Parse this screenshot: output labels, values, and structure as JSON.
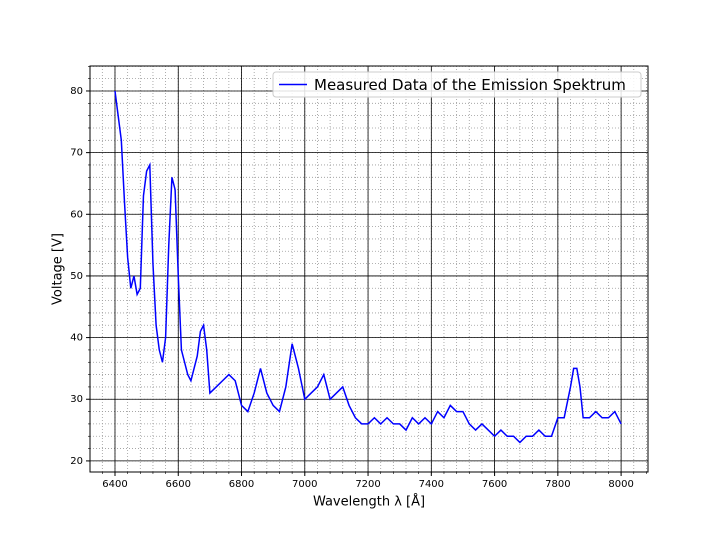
{
  "chart_data": {
    "type": "line",
    "xlabel": "Wavelength λ [Å]",
    "ylabel": "Voltage [V]",
    "x": [
      6400,
      6410,
      6420,
      6430,
      6440,
      6450,
      6460,
      6470,
      6480,
      6490,
      6500,
      6510,
      6520,
      6530,
      6540,
      6550,
      6560,
      6570,
      6580,
      6590,
      6600,
      6610,
      6620,
      6630,
      6640,
      6650,
      6660,
      6670,
      6680,
      6690,
      6700,
      6720,
      6740,
      6760,
      6780,
      6800,
      6820,
      6840,
      6860,
      6880,
      6900,
      6920,
      6940,
      6960,
      6980,
      7000,
      7020,
      7040,
      7060,
      7080,
      7100,
      7120,
      7140,
      7160,
      7180,
      7200,
      7220,
      7240,
      7260,
      7280,
      7300,
      7320,
      7340,
      7360,
      7380,
      7400,
      7420,
      7440,
      7460,
      7480,
      7500,
      7520,
      7540,
      7560,
      7580,
      7600,
      7620,
      7640,
      7660,
      7680,
      7700,
      7720,
      7740,
      7760,
      7780,
      7800,
      7820,
      7840,
      7850,
      7860,
      7870,
      7880,
      7900,
      7920,
      7940,
      7960,
      7980,
      8000
    ],
    "series": [
      {
        "name": "Measured Data of the Emission Spektrum",
        "color": "#0000ff",
        "values": [
          80,
          76,
          72,
          62,
          53,
          48,
          50,
          47,
          48,
          63,
          67,
          68,
          52,
          42,
          38,
          36,
          40,
          55,
          66,
          64,
          50,
          38,
          36,
          34,
          33,
          35,
          37,
          41,
          42,
          38,
          31,
          32,
          33,
          34,
          33,
          29,
          28,
          31,
          35,
          31,
          29,
          28,
          32,
          39,
          35,
          30,
          31,
          32,
          34,
          30,
          31,
          32,
          29,
          27,
          26,
          26,
          27,
          26,
          27,
          26,
          26,
          25,
          27,
          26,
          27,
          26,
          28,
          27,
          29,
          28,
          28,
          26,
          25,
          26,
          25,
          24,
          25,
          24,
          24,
          23,
          24,
          24,
          25,
          24,
          24,
          27,
          27,
          32,
          35,
          35,
          32,
          27,
          27,
          28,
          27,
          27,
          28,
          26
        ]
      }
    ],
    "xlim": [
      6321,
      8085
    ],
    "ylim": [
      18.2,
      84.05
    ],
    "xticks": [
      6400,
      6600,
      6800,
      7000,
      7200,
      7400,
      7600,
      7800,
      8000
    ],
    "yticks": [
      20,
      30,
      40,
      50,
      60,
      70,
      80
    ],
    "xminor": [
      6360,
      6400,
      6440,
      6480,
      6520,
      6560,
      6600,
      6640,
      6680,
      6720,
      6760,
      6800,
      6840,
      6880,
      6920,
      6960,
      7000,
      7040,
      7080,
      7120,
      7160,
      7200,
      7240,
      7280,
      7320,
      7360,
      7400,
      7440,
      7480,
      7520,
      7560,
      7600,
      7640,
      7680,
      7720,
      7760,
      7800,
      7840,
      7880,
      7920,
      7960,
      8000,
      8040,
      8080
    ],
    "yminor": [
      20,
      22,
      24,
      26,
      28,
      30,
      32,
      34,
      36,
      38,
      40,
      42,
      44,
      46,
      48,
      50,
      52,
      54,
      56,
      58,
      60,
      62,
      64,
      66,
      68,
      70,
      72,
      74,
      76,
      78,
      80,
      82,
      84
    ],
    "grid": true,
    "legend": "upper right"
  }
}
